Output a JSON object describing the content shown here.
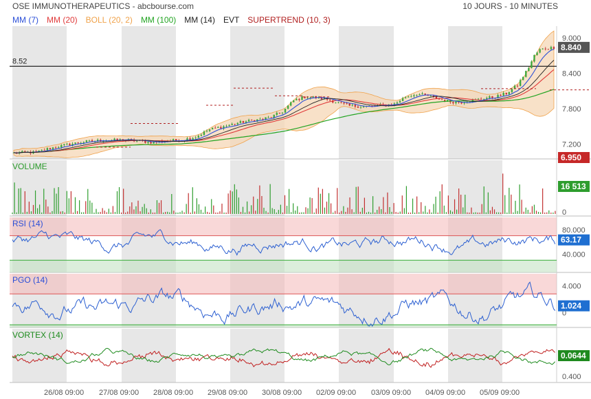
{
  "header": {
    "title": "OSE IMMUNOTHERAPEUTICS - abcbourse.com",
    "timeframe": "10 JOURS - 10 MINUTES"
  },
  "legend": [
    {
      "label": "MM (7)",
      "color": "#2b4fd8"
    },
    {
      "label": "MM (20)",
      "color": "#e03a3a"
    },
    {
      "label": "BOLL (20, 2)",
      "color": "#f0a24a"
    },
    {
      "label": "MM (100)",
      "color": "#22a422"
    },
    {
      "label": "MM (14)",
      "color": "#222222"
    },
    {
      "label": "EVT",
      "color": "#222222"
    },
    {
      "label": "SUPERTREND (10, 3)",
      "color": "#b01e1e"
    }
  ],
  "chart_data": [
    {
      "type": "line",
      "panel": "price",
      "ylim": [
        6.95,
        9.2
      ],
      "ticks": [
        "9.000",
        "8.400",
        "7.800",
        "7.200"
      ],
      "hline": {
        "label": "8.52",
        "value": 8.52
      },
      "last_badge": {
        "label": "8.840",
        "value": 8.84
      },
      "low_badge": {
        "label": "6.950",
        "value": 6.95
      },
      "xlabels": [
        "26/08 09:00",
        "27/08 09:00",
        "28/08 09:00",
        "29/08 09:00",
        "30/08 09:00",
        "02/09 09:00",
        "03/09 09:00",
        "04/09 09:00",
        "05/09 09:00"
      ],
      "series": [
        {
          "name": "MM (7)",
          "color": "#2b4fd8"
        },
        {
          "name": "MM (20)",
          "color": "#e03a3a"
        },
        {
          "name": "MM (100)",
          "color": "#22a422"
        },
        {
          "name": "SUPERTREND (10, 3)",
          "color": "#b01e1e"
        }
      ],
      "close_path": [
        [
          0,
          7.05
        ],
        [
          5,
          7.06
        ],
        [
          8,
          7.06
        ],
        [
          12,
          7.12
        ],
        [
          16,
          7.16
        ],
        [
          20,
          7.2
        ],
        [
          25,
          7.24
        ],
        [
          30,
          7.26
        ],
        [
          35,
          7.27
        ],
        [
          40,
          7.27
        ],
        [
          45,
          7.25
        ],
        [
          50,
          7.23
        ],
        [
          55,
          7.26
        ],
        [
          60,
          7.27
        ],
        [
          65,
          7.32
        ],
        [
          70,
          7.45
        ],
        [
          75,
          7.5
        ],
        [
          80,
          7.56
        ],
        [
          85,
          7.6
        ],
        [
          88,
          7.62
        ],
        [
          92,
          7.66
        ],
        [
          96,
          7.75
        ],
        [
          100,
          7.94
        ],
        [
          104,
          8.0
        ],
        [
          108,
          7.99
        ],
        [
          112,
          7.96
        ],
        [
          116,
          7.9
        ],
        [
          120,
          7.85
        ],
        [
          124,
          7.84
        ],
        [
          128,
          7.84
        ],
        [
          132,
          7.86
        ],
        [
          136,
          7.88
        ],
        [
          140,
          8.0
        ],
        [
          144,
          8.05
        ],
        [
          148,
          8.02
        ],
        [
          152,
          7.96
        ],
        [
          156,
          7.92
        ],
        [
          160,
          7.91
        ],
        [
          164,
          7.94
        ],
        [
          168,
          7.98
        ],
        [
          172,
          8.0
        ],
        [
          176,
          8.06
        ],
        [
          180,
          8.2
        ],
        [
          184,
          8.5
        ],
        [
          186,
          8.7
        ],
        [
          188,
          8.8
        ],
        [
          190,
          8.82
        ],
        [
          193,
          8.84
        ]
      ]
    },
    {
      "type": "bar",
      "panel": "volume",
      "title": "VOLUME",
      "ticks": [
        "0"
      ],
      "last_badge": {
        "label": "16 513"
      }
    },
    {
      "type": "line",
      "panel": "rsi",
      "title": "RSI (14)",
      "ylim": [
        10,
        100
      ],
      "ticks": [
        "80.000",
        "40.000"
      ],
      "bands": [
        70,
        30
      ],
      "last_badge": {
        "label": "63.17",
        "value": 63.17
      }
    },
    {
      "type": "line",
      "panel": "pgo",
      "title": "PGO (14)",
      "ylim": [
        -2.2,
        5.8
      ],
      "ticks": [
        "4.000",
        "0"
      ],
      "bands": [
        2.8,
        -1.8
      ],
      "last_badge": {
        "label": "1.024",
        "value": 1.024
      }
    },
    {
      "type": "line",
      "panel": "vortex",
      "title": "VORTEX (14)",
      "ylim": [
        0.2,
        1.9
      ],
      "ticks": [
        "0.400"
      ],
      "series": [
        {
          "name": "VI+",
          "color": "#1c8a1c"
        },
        {
          "name": "VI-",
          "color": "#c01e1e"
        }
      ],
      "last_badge": {
        "label": "0.0644"
      }
    }
  ]
}
